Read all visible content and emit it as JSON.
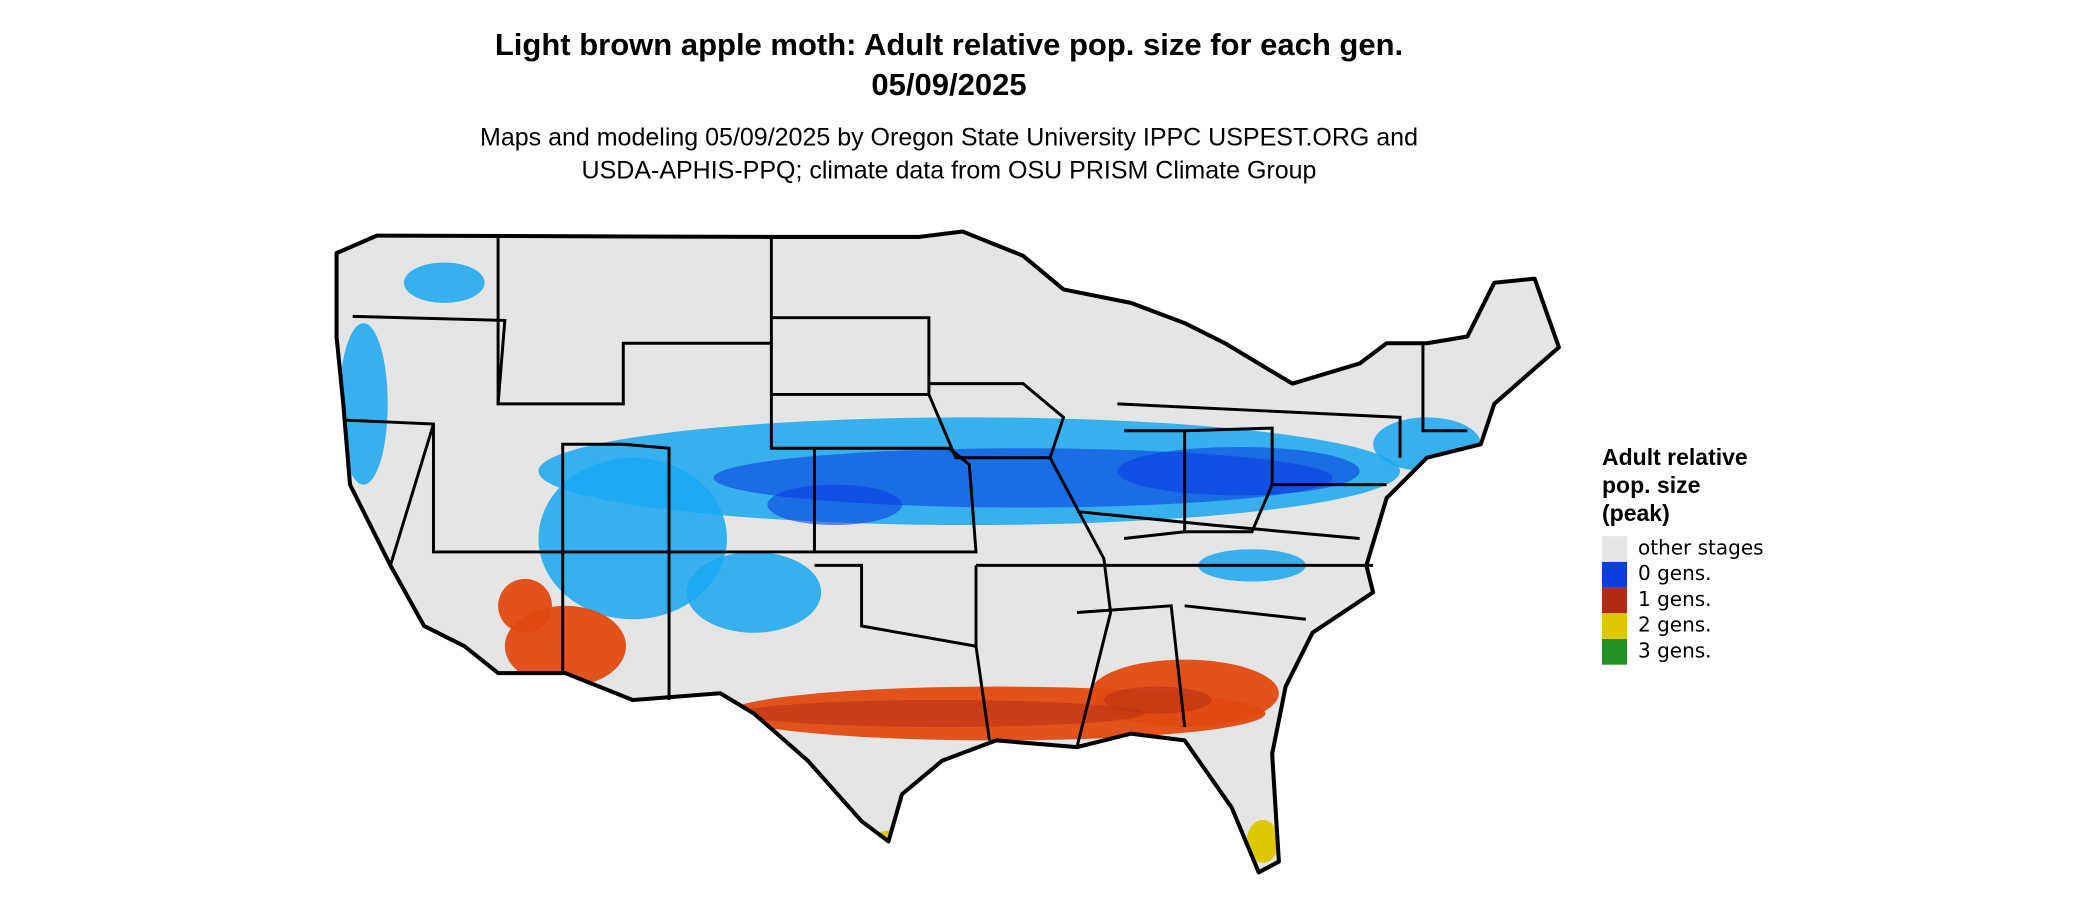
{
  "map": {
    "title": [
      "Light brown apple moth: Adult relative pop. size for each gen.",
      "05/09/2025"
    ],
    "subtitle": [
      "Maps and modeling 05/09/2025 by Oregon State University IPPC USPEST.ORG and",
      "USDA-APHIS-PPQ; climate data from OSU PRISM Climate Group"
    ],
    "legend": {
      "title": [
        "Adult relative",
        "pop. size",
        "(peak)"
      ],
      "items": [
        {
          "label": "other stages",
          "color": "#e5e5e5"
        },
        {
          "label": "0 gens.",
          "color": "#0a3ee0"
        },
        {
          "label": "1 gens.",
          "color": "#b22a14"
        },
        {
          "label": "2 gens.",
          "color": "#e0c800"
        },
        {
          "label": "3 gens.",
          "color": "#239123"
        }
      ]
    }
  }
}
